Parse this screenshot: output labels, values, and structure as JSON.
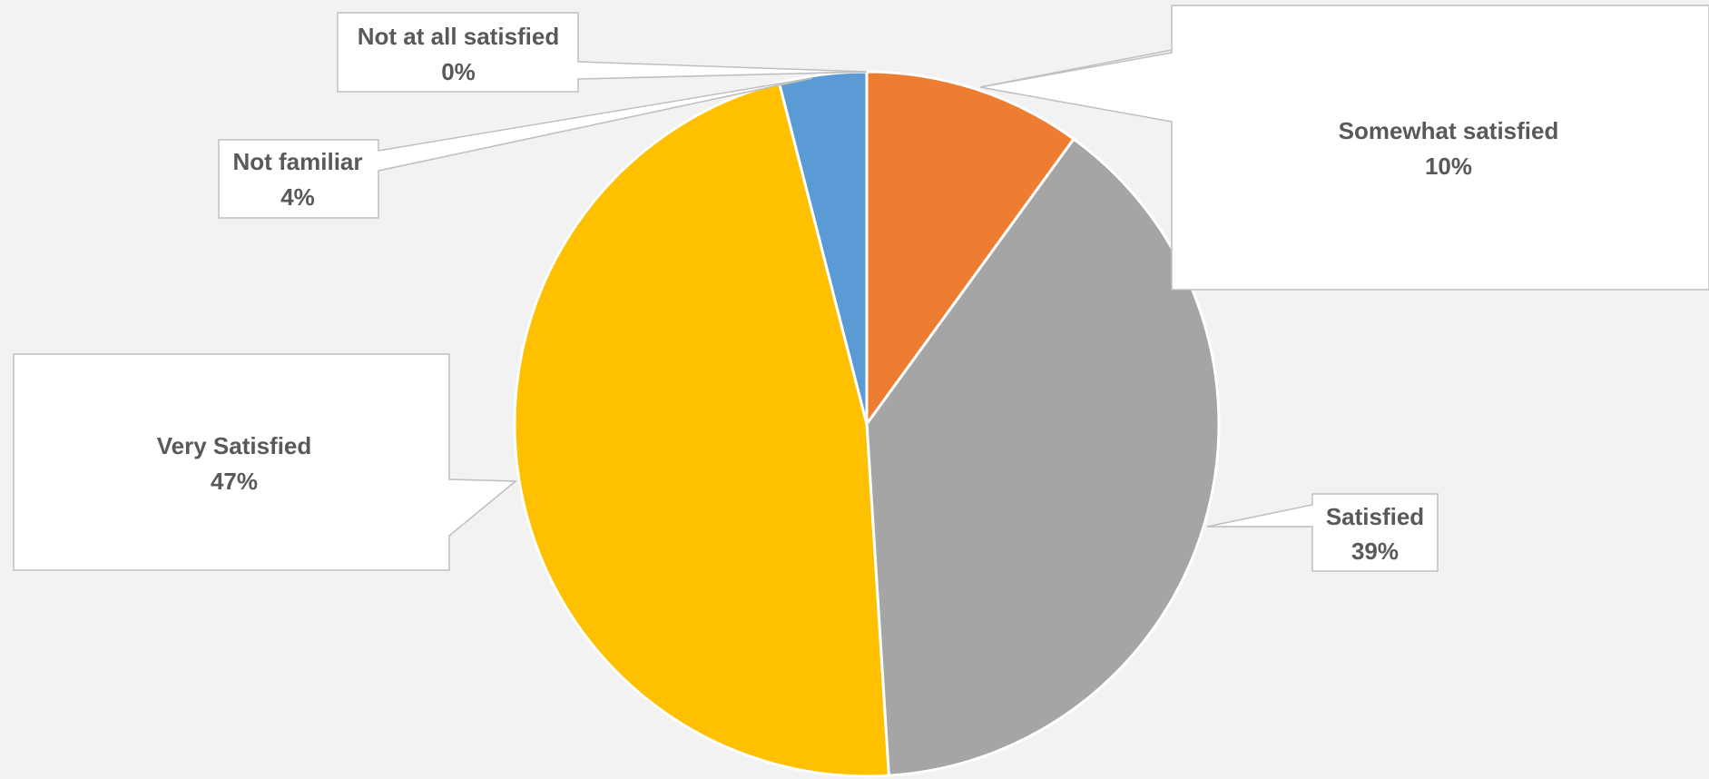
{
  "chart_data": {
    "type": "pie",
    "title": "",
    "slices": [
      {
        "label": "Somewhat satisfied",
        "value": 10,
        "value_label": "10%",
        "color": "#ED7D31"
      },
      {
        "label": "Satisfied",
        "value": 39,
        "value_label": "39%",
        "color": "#A5A5A5"
      },
      {
        "label": "Very Satisfied",
        "value": 47,
        "value_label": "47%",
        "color": "#FFC000"
      },
      {
        "label": "Not familiar",
        "value": 4,
        "value_label": "4%",
        "color": "#5B9BD5"
      },
      {
        "label": "Not at all satisfied",
        "value": 0,
        "value_label": "0%",
        "color": "#4472C4"
      }
    ],
    "start_angle_deg": 0,
    "direction": "clockwise",
    "data_labels": "callouts with category name and percentage",
    "legend": "none"
  }
}
